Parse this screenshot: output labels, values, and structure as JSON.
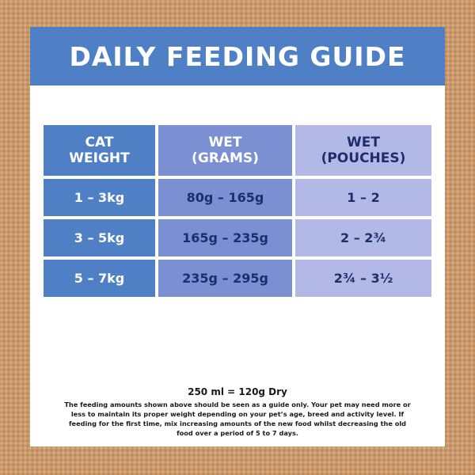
{
  "title": "DAILY FEEDING GUIDE",
  "table": {
    "headers": {
      "col1_line1": "CAT",
      "col1_line2": "WEIGHT",
      "col2_line1": "WET",
      "col2_line2": "(GRAMS)",
      "col3_line1": "WET",
      "col3_line2": "(POUCHES)"
    },
    "rows": [
      {
        "weight": "1 – 3kg",
        "grams": "80g – 165g",
        "pouches": "1 – 2"
      },
      {
        "weight": "3 – 5kg",
        "grams": "165g – 235g",
        "pouches": "2 – 2¾"
      },
      {
        "weight": "5 – 7kg",
        "grams": "235g – 295g",
        "pouches": "2¾ – 3½"
      }
    ]
  },
  "conversion": "250 ml = 120g Dry",
  "note": "The feeding amounts shown above should be seen as a guide only. Your pet may need more or less to maintain its proper weight depending on your pet’s age, breed and activity level. If feeding for the first time, mix increasing amounts of the new food whilst decreasing the old food over a period of 5 to 7 days.",
  "colors": {
    "background": "#c9976a",
    "title_bar": "#4f7fc4",
    "col1": "#4f7fc4",
    "col2": "#7b8fd3",
    "col3": "#b3b9e6",
    "dark_text": "#1e2d6b"
  }
}
